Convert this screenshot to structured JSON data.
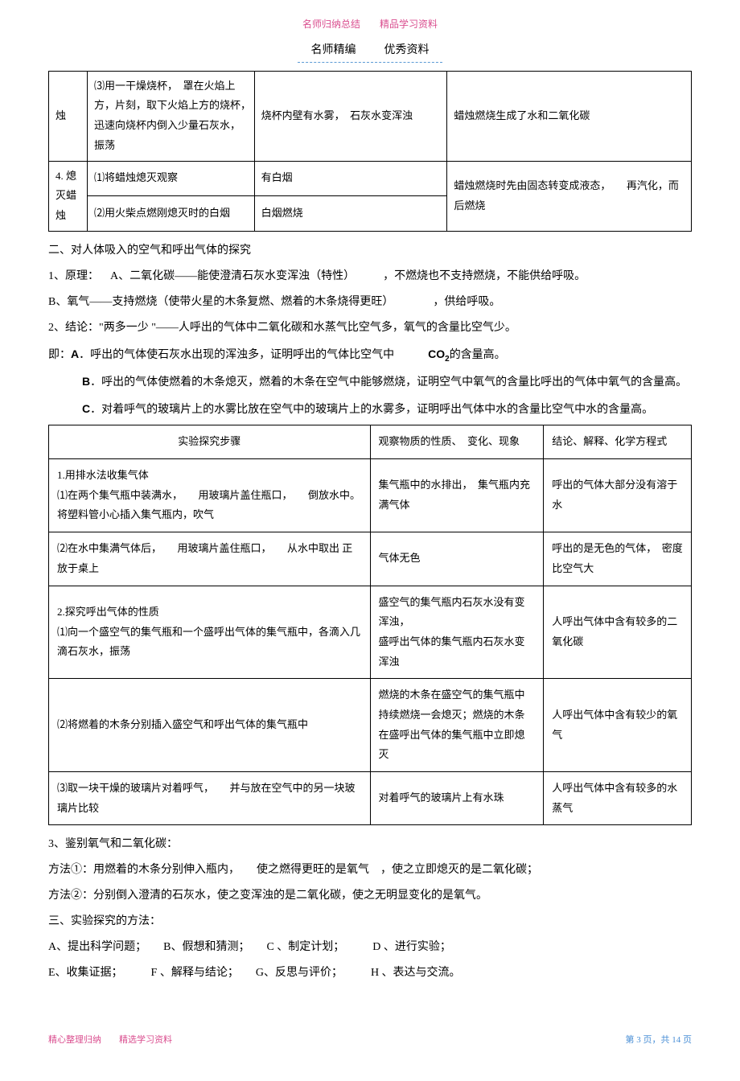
{
  "header": {
    "note": "名师归纳总结　　精品学习资料",
    "title_left": "名师精编",
    "title_right": "优秀资料"
  },
  "table1": {
    "rows": [
      {
        "c1": "烛",
        "c2": "⑶用一干燥烧杯，　罩在火焰上方，片刻，取下火焰上方的烧杯，　迅速向烧杯内倒入少量石灰水，　　振荡",
        "c3": "烧杯内壁有水雾，　石灰水变浑浊",
        "c4": "蜡烛燃烧生成了水和二氧化碳"
      },
      {
        "c1": "4. 熄灭蜡烛",
        "c2a": "⑴将蜡烛熄灭观察",
        "c3a": "有白烟",
        "c2b": "⑵用火柴点燃刚熄灭时的白烟",
        "c3b": "白烟燃烧",
        "c4": "蜡烛燃烧时先由固态转变成液态，　　再汽化，而后燃烧"
      }
    ]
  },
  "section2": {
    "title": "二、对人体吸入的空气和呼出气体的探究",
    "p1a": "1、原理：",
    "p1b": "A、二氧化碳——能使澄清石灰水变浑浊（特性）　　　，不燃烧也不支持燃烧，不能供给呼吸。",
    "p2": "B、氧气——支持燃烧（使带火星的木条复燃、燃着的木条烧得更旺）　　　　，供给呼吸。",
    "p3": "2、结论：\"两多一少 \"——人呼出的气体中二氧化碳和水蒸气比空气多，氧气的含量比空气少。",
    "p4a": "即：",
    "p4b": "A",
    "p4c": "．呼出的气体使石灰水出现的浑浊多，证明呼出的气体比空气中",
    "p4d": "CO",
    "p4e": "2",
    "p4f": "的含量高。",
    "p5a": "B",
    "p5b": "．呼出的气体使燃着的木条熄灭，燃着的木条在空气中能够燃烧，证明空气中氧气的含量比呼出的气体中氧气的含量高。",
    "p6a": "C",
    "p6b": "．对着呼气的玻璃片上的水雾比放在空气中的玻璃片上的水雾多，证明呼出气体中水的含量比空气中水的含量高。"
  },
  "table2": {
    "headers": {
      "h1": "实验探究步骤",
      "h2": "观察物质的性质、　变化、现象",
      "h3": "结论、解释、化学方程式"
    },
    "rows": [
      {
        "c1": "1.用排水法收集气体\n⑴在两个集气瓶中装满水，　　用玻璃片盖住瓶口，　　倒放水中。将塑料管小心插入集气瓶内，吹气",
        "c2": "集气瓶中的水排出，　集气瓶内充满气体",
        "c3": "呼出的气体大部分没有溶于水"
      },
      {
        "c1": "⑵在水中集满气体后，　　用玻璃片盖住瓶口，　　从水中取出 正放于桌上",
        "c2": "气体无色",
        "c3": "呼出的是无色的气体，　密度比空气大"
      },
      {
        "c1": " 2.探究呼出气体的性质\n⑴向一个盛空气的集气瓶和一个盛呼出气体的集气瓶中，各滴入几滴石灰水，振荡",
        "c2": "盛空气的集气瓶内石灰水没有变浑浊，\n盛呼出气体的集气瓶内石灰水变浑浊",
        "c3": "人呼出气体中含有较多的二氧化碳"
      },
      {
        "c1": "⑵将燃着的木条分别插入盛空气和呼出气体的集气瓶中",
        "c2": "燃烧的木条在盛空气的集气瓶中持续燃烧一会熄灭；燃烧的木条在盛呼出气体的集气瓶中立即熄灭",
        "c3": "人呼出气体中含有较少的氧气"
      },
      {
        "c1": "⑶取一块干燥的玻璃片对着呼气，　　并与放在空气中的另一块玻璃片比较",
        "c2": "对着呼气的玻璃片上有水珠",
        "c3": "人呼出气体中含有较多的水蒸气"
      }
    ]
  },
  "section3": {
    "p1": "3、鉴别氧气和二氧化碳：",
    "p2": "方法①：用燃着的木条分别伸入瓶内，　　使之燃得更旺的是氧气　，使之立即熄灭的是二氧化碳；",
    "p3": "方法②：分别倒入澄清的石灰水，使之变浑浊的是二氧化碳，使之无明显变化的是氧气。",
    "p4": "三、实验探究的方法：",
    "p5": "A、提出科学问题；　　B、假想和猜测；　　C 、制定计划；　　　D  、进行实验；",
    "p6": "E、收集证据；　　　F  、解释与结论；　　G、反思与评价；　　　H  、表达与交流。"
  },
  "footer": {
    "left": "精心整理归纳　　精选学习资料",
    "right": "第 3 页，共 14 页"
  }
}
